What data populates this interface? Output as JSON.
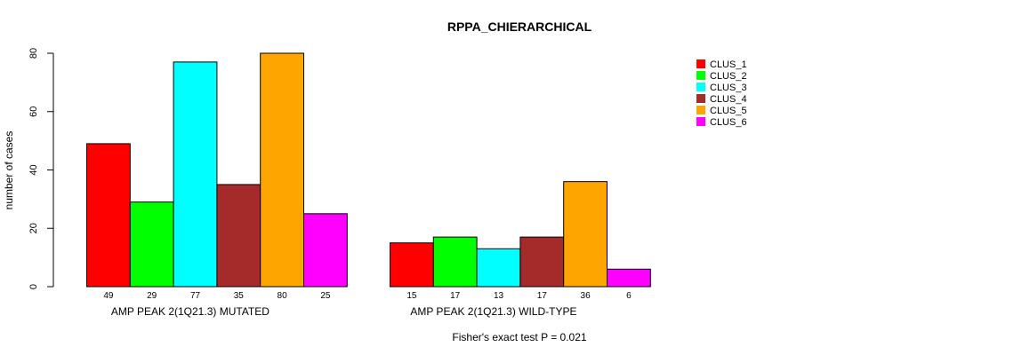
{
  "chart_data": {
    "type": "bar",
    "title": "RPPA_CHIERARCHICAL",
    "ylabel": "number of cases",
    "ylim": [
      0,
      80
    ],
    "yticks": [
      0,
      20,
      40,
      60,
      80
    ],
    "groups": [
      "AMP PEAK  2(1Q21.3) MUTATED",
      "AMP PEAK  2(1Q21.3) WILD-TYPE"
    ],
    "series": [
      {
        "name": "CLUS_1",
        "color": "#ff0000",
        "values": [
          49,
          15
        ]
      },
      {
        "name": "CLUS_2",
        "color": "#00ff00",
        "values": [
          29,
          17
        ]
      },
      {
        "name": "CLUS_3",
        "color": "#00ffff",
        "values": [
          77,
          13
        ]
      },
      {
        "name": "CLUS_4",
        "color": "#a52a2a",
        "values": [
          35,
          17
        ]
      },
      {
        "name": "CLUS_5",
        "color": "#ffa500",
        "values": [
          80,
          36
        ]
      },
      {
        "name": "CLUS_6",
        "color": "#ff00ff",
        "values": [
          25,
          6
        ]
      }
    ],
    "legend_position": "top-right",
    "grid": false,
    "footnote": "Fisher's exact test P = 0.021"
  }
}
